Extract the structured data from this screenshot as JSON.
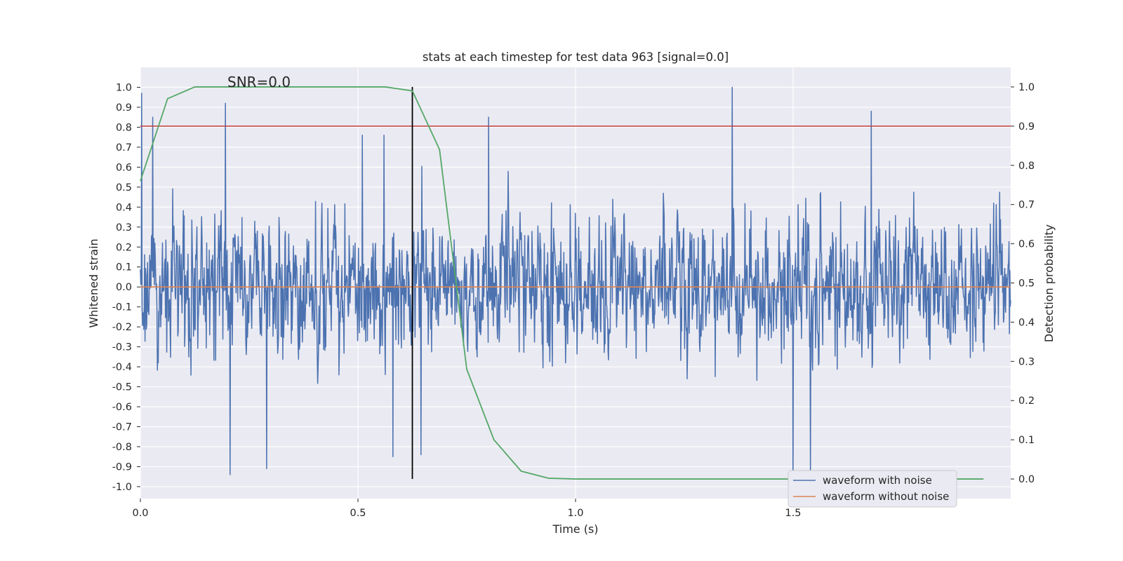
{
  "chart_data": {
    "type": "line",
    "title": "stats at each timestep for test data 963 [signal=0.0]",
    "xlabel": "Time (s)",
    "ylabel_left": "Whitened strain",
    "ylabel_right": "Detection probability",
    "annotation": "SNR=0.0",
    "xlim": [
      0.0,
      2.0
    ],
    "ylim_left": [
      -1.06,
      1.1
    ],
    "ylim_right": [
      -0.05,
      1.05
    ],
    "x_ticks": [
      0.0,
      0.5,
      1.0,
      1.5
    ],
    "x_tick_labels": [
      "0.0",
      "0.5",
      "1.0",
      "1.5"
    ],
    "y_ticks_left": [
      1.0,
      0.9,
      0.8,
      0.7,
      0.6,
      0.5,
      0.4,
      0.3,
      0.2,
      0.1,
      0.0,
      -0.1,
      -0.2,
      -0.3,
      -0.4,
      -0.5,
      -0.6,
      -0.7,
      -0.8,
      -0.9,
      -1.0
    ],
    "y_tick_labels_left": [
      "1.0",
      "0.9",
      "0.8",
      "0.7",
      "0.6",
      "0.5",
      "0.4",
      "0.3",
      "0.2",
      "0.1",
      "0.0",
      "-0.1",
      "-0.2",
      "-0.3",
      "-0.4",
      "-0.5",
      "-0.6",
      "-0.7",
      "-0.8",
      "-0.9",
      "-1.0"
    ],
    "y_ticks_right": [
      1.0,
      0.9,
      0.8,
      0.7,
      0.6,
      0.5,
      0.4,
      0.3,
      0.2,
      0.1,
      0.0
    ],
    "y_tick_labels_right": [
      "1.0",
      "0.9",
      "0.8",
      "0.7",
      "0.6",
      "0.5",
      "0.4",
      "0.3",
      "0.2",
      "0.1",
      "0.0"
    ],
    "grid": true,
    "legend_position": "lower-right",
    "threshold_line": {
      "axis": "right",
      "y": 0.9,
      "color": "#c03d3e"
    },
    "marker_line": {
      "x": 0.625,
      "y_range_right": [
        0.0,
        1.0
      ],
      "color": "#000000"
    },
    "series": [
      {
        "name": "waveform with noise",
        "axis": "left",
        "color": "#4c72b0",
        "sample_count": 2048,
        "x_range": [
          0.0,
          2.0
        ],
        "y_range": [
          -1.0,
          1.0
        ],
        "note": "dense noisy signal; notable extrema listed",
        "extrema": [
          {
            "x": 0.003,
            "y": 0.97
          },
          {
            "x": 0.028,
            "y": 0.85
          },
          {
            "x": 0.195,
            "y": 0.92
          },
          {
            "x": 0.206,
            "y": -0.94
          },
          {
            "x": 0.29,
            "y": -0.91
          },
          {
            "x": 0.51,
            "y": 0.76
          },
          {
            "x": 0.56,
            "y": 0.76
          },
          {
            "x": 0.58,
            "y": -0.85
          },
          {
            "x": 0.645,
            "y": -0.84
          },
          {
            "x": 0.8,
            "y": 0.85
          },
          {
            "x": 1.36,
            "y": 1.0
          },
          {
            "x": 1.68,
            "y": 0.88
          },
          {
            "x": 1.5,
            "y": -1.0
          },
          {
            "x": 1.54,
            "y": -0.95
          }
        ]
      },
      {
        "name": "waveform without noise",
        "axis": "left",
        "color": "#dd8452",
        "x": [
          0.0,
          2.0
        ],
        "y": [
          0.0,
          0.0
        ]
      },
      {
        "name": "",
        "axis": "right",
        "color": "#55a868",
        "x": [
          0.0,
          0.0625,
          0.125,
          0.1875,
          0.25,
          0.3125,
          0.375,
          0.4375,
          0.5,
          0.5625,
          0.625,
          0.6875,
          0.75,
          0.8125,
          0.875,
          0.9375,
          1.0,
          1.0625,
          1.125,
          1.1875,
          1.25,
          1.3125,
          1.375,
          1.4375,
          1.5,
          1.5625,
          1.625,
          1.6875,
          1.75,
          1.8125,
          1.875,
          1.9375
        ],
        "y": [
          0.76,
          0.97,
          1.0,
          1.0,
          1.0,
          1.0,
          1.0,
          1.0,
          1.0,
          1.0,
          0.99,
          0.84,
          0.28,
          0.1,
          0.02,
          0.002,
          0.0,
          0.0,
          0.0,
          0.0,
          0.0,
          0.0,
          0.0,
          0.0,
          0.0,
          0.0,
          0.0,
          0.0,
          0.0,
          0.0,
          0.0,
          0.0
        ]
      }
    ]
  }
}
